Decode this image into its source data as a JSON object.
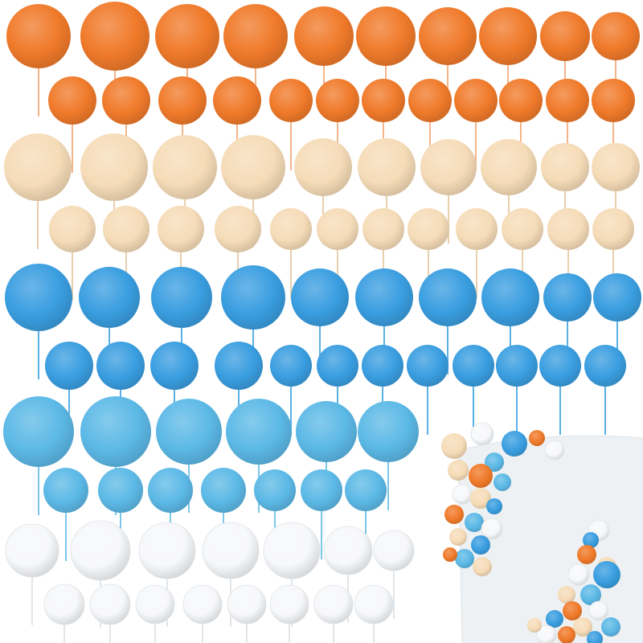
{
  "photo": {
    "subject": "ball-cake-toppers",
    "background_color": "#ffffff",
    "palette": {
      "orange": "#f07a2a",
      "beige": "#f6dcb8",
      "blue": "#3a9ee0",
      "light_blue": "#5cb9e6",
      "white": "#f7f8fa"
    },
    "stick_colors": {
      "orange": "#f3b48a",
      "beige": "#e8cfae",
      "blue": "#5ab1e6",
      "light_blue": "#7cc6ea",
      "white": "#e2e6ea"
    },
    "cake_color": "#eef1f3"
  }
}
